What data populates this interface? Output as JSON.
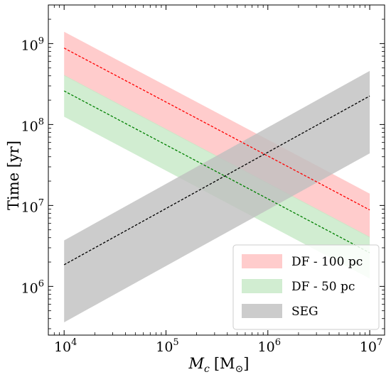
{
  "chart_data": {
    "type": "area",
    "title": "",
    "xlabel": "",
    "xlabel_parts": {
      "base": "M",
      "sub": "c",
      "unit": "[M",
      "sun": "⊙",
      "close": "]"
    },
    "ylabel": "Time [yr]",
    "xscale": "log",
    "yscale": "log",
    "xlim": [
      7000,
      14000000
    ],
    "ylim": [
      250000,
      3000000000
    ],
    "grid": false,
    "legend_position": "lower-right",
    "x_ticks": [
      {
        "value": 10000,
        "base": "10",
        "exp": "4"
      },
      {
        "value": 100000,
        "base": "10",
        "exp": "5"
      },
      {
        "value": 1000000,
        "base": "10",
        "exp": "6"
      },
      {
        "value": 10000000,
        "base": "10",
        "exp": "7"
      }
    ],
    "y_ticks": [
      {
        "value": 1000000,
        "base": "10",
        "exp": "6"
      },
      {
        "value": 10000000,
        "base": "10",
        "exp": "7"
      },
      {
        "value": 100000000,
        "base": "10",
        "exp": "8"
      },
      {
        "value": 1000000000,
        "base": "10",
        "exp": "9"
      }
    ],
    "series": [
      {
        "name": "DF - 100 pc",
        "color": "#ff0000",
        "band_color": "#ffbfbf",
        "line_style": "dashed",
        "x": [
          10000,
          10000000
        ],
        "center": [
          880000000,
          8800000
        ],
        "lower": [
          400000000,
          4000000
        ],
        "upper": [
          1400000000,
          14000000
        ]
      },
      {
        "name": "DF - 50 pc",
        "color": "#008000",
        "band_color": "#c6e8c6",
        "line_style": "dashed",
        "x": [
          10000,
          10000000
        ],
        "center": [
          260000000,
          2600000
        ],
        "lower": [
          125000000,
          1250000
        ],
        "upper": [
          410000000,
          4100000
        ]
      },
      {
        "name": "SEG",
        "color": "#000000",
        "band_color": "#bfbfbf",
        "line_style": "dashed",
        "x": [
          10000,
          10000000
        ],
        "center": [
          1850000,
          225000000
        ],
        "lower": [
          360000,
          44000000
        ],
        "upper": [
          3700000,
          460000000
        ]
      }
    ]
  }
}
